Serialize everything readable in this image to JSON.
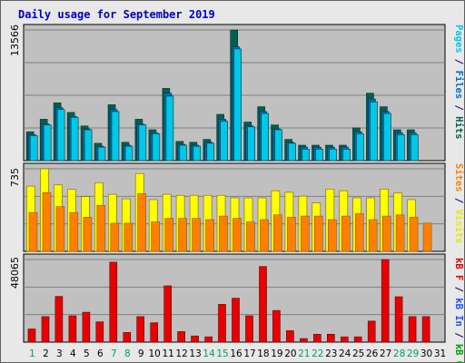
{
  "chart_data": [
    {
      "type": "bar",
      "title": "Daily usage for September 2019",
      "categories": [
        "1",
        "2",
        "3",
        "4",
        "5",
        "6",
        "7",
        "8",
        "9",
        "10",
        "11",
        "12",
        "13",
        "14",
        "15",
        "16",
        "17",
        "18",
        "19",
        "20",
        "21",
        "22",
        "23",
        "24",
        "25",
        "26",
        "27",
        "28",
        "29",
        "30",
        "31"
      ],
      "weekend_days": [
        "1",
        "7",
        "8",
        "14",
        "15",
        "21",
        "22",
        "28",
        "29"
      ],
      "y_max_label": "13566",
      "right_labels": [
        {
          "text": "Pages",
          "color": "#00c8e8"
        },
        {
          "text": " / ",
          "color": "#000080"
        },
        {
          "text": "Files",
          "color": "#0070c0"
        },
        {
          "text": " / ",
          "color": "#000080"
        },
        {
          "text": "Hits",
          "color": "#006050"
        }
      ],
      "series": [
        {
          "name": "Hits",
          "color": "#006050",
          "values": [
            3000,
            4300,
            6000,
            5000,
            3600,
            1800,
            5800,
            1900,
            4300,
            3200,
            7500,
            2000,
            1900,
            2200,
            4800,
            13566,
            4000,
            5600,
            3700,
            2200,
            1600,
            1600,
            1600,
            1600,
            3400,
            7000,
            5600,
            3200,
            3200,
            0,
            0
          ]
        },
        {
          "name": "Files",
          "color": "#0070c0",
          "values": [
            2700,
            3800,
            5500,
            4600,
            3300,
            1500,
            5300,
            1600,
            3800,
            2900,
            7000,
            1700,
            1600,
            1900,
            4300,
            11800,
            3600,
            5100,
            3300,
            1900,
            1400,
            1400,
            1400,
            1400,
            3000,
            6400,
            5100,
            2900,
            2900,
            0,
            0
          ]
        },
        {
          "name": "Pages",
          "color": "#00c8e8",
          "values": [
            2600,
            3700,
            5300,
            4500,
            3200,
            1400,
            5100,
            1500,
            3700,
            2800,
            6700,
            1600,
            1500,
            1800,
            4100,
            11600,
            3500,
            4900,
            3200,
            1800,
            1200,
            1200,
            1200,
            1200,
            2800,
            6100,
            4900,
            2700,
            2700,
            0,
            0
          ]
        }
      ]
    },
    {
      "type": "bar",
      "y_max_label": "735",
      "right_labels": [
        {
          "text": "Sites",
          "color": "#ff8000"
        },
        {
          "text": " / ",
          "color": "#000080"
        },
        {
          "text": "Visits",
          "color": "#e8e800"
        }
      ],
      "series": [
        {
          "name": "Visits",
          "color": "#ffff00",
          "values": [
            555,
            702,
            565,
            526,
            466,
            584,
            485,
            447,
            662,
            440,
            485,
            477,
            477,
            477,
            477,
            455,
            455,
            455,
            515,
            502,
            470,
            412,
            530,
            515,
            455,
            455,
            530,
            495,
            440,
            0,
            0
          ]
        },
        {
          "name": "Sites",
          "color": "#ff8000",
          "values": [
            330,
            500,
            380,
            330,
            290,
            390,
            240,
            240,
            490,
            250,
            280,
            280,
            280,
            270,
            300,
            280,
            250,
            270,
            310,
            290,
            300,
            300,
            270,
            300,
            320,
            270,
            300,
            310,
            290,
            240,
            0
          ]
        }
      ]
    },
    {
      "type": "bar",
      "y_max_label": "48065",
      "right_labels": [
        {
          "text": "kB F",
          "color": "#e80000"
        },
        {
          "text": " / ",
          "color": "#000080"
        },
        {
          "text": "kB In",
          "color": "#2050ff"
        },
        {
          "text": " / ",
          "color": "#000080"
        },
        {
          "text": "kB Out",
          "color": "#00a000"
        }
      ],
      "series": [
        {
          "name": "kB F",
          "color": "#e80000",
          "values": [
            7500,
            14500,
            26000,
            15000,
            17000,
            11500,
            45500,
            5500,
            14500,
            11000,
            32000,
            6000,
            3500,
            3000,
            21500,
            25000,
            15000,
            43000,
            18000,
            6500,
            2000,
            4500,
            4500,
            3000,
            3000,
            12000,
            47000,
            25800,
            14500,
            14500,
            0
          ]
        }
      ]
    }
  ]
}
